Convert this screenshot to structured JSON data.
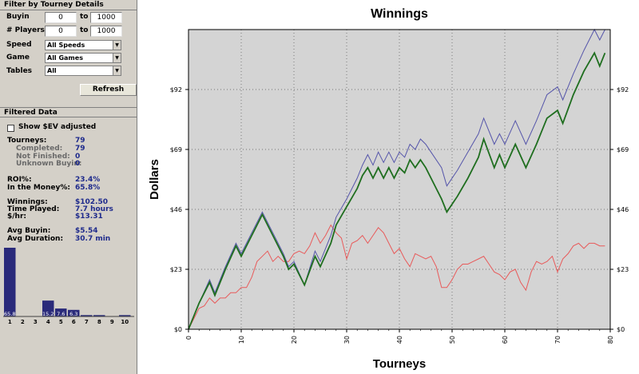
{
  "filter": {
    "header": "Filter by Tourney Details",
    "buyin": {
      "label": "Buyin",
      "min": "0",
      "to": "to",
      "max": "1000"
    },
    "players": {
      "label": "# Players",
      "min": "0",
      "to": "to",
      "max": "1000"
    },
    "speed": {
      "label": "Speed",
      "value": "All Speeds"
    },
    "game": {
      "label": "Game",
      "value": "All Games"
    },
    "tables": {
      "label": "Tables",
      "value": "All"
    },
    "refresh": "Refresh"
  },
  "filtered": {
    "header": "Filtered Data",
    "show_ev": "Show $EV adjusted",
    "tourneys_label": "Tourneys:",
    "tourneys": "79",
    "completed_label": "Completed:",
    "completed": "79",
    "not_finished_label": "Not Finished:",
    "not_finished": "0",
    "unknown_buyin_label": "Unknown Buyin:",
    "unknown_buyin": "0",
    "roi_label": "ROI%:",
    "roi": "23.4%",
    "itm_label": "In the Money%:",
    "itm": "65.8%",
    "winnings_label": "Winnings:",
    "winnings": "$102.50",
    "time_label": "Time Played:",
    "time": "7.7 hours",
    "hourly_label": "$/hr:",
    "hourly": "$13.31",
    "avg_buyin_label": "Avg Buyin:",
    "avg_buyin": "$5.54",
    "avg_duration_label": "Avg Duration:",
    "avg_duration": "30.7 min"
  },
  "histogram": {
    "bar_color": "#2a2a7a",
    "categories": [
      "1",
      "2",
      "3",
      "4",
      "5",
      "6",
      "7",
      "8",
      "9",
      "10"
    ],
    "values": [
      65.8,
      0,
      0,
      15.2,
      7.6,
      6.3,
      1.3,
      1.3,
      0,
      1.3
    ],
    "labels": [
      "65.8",
      "",
      "",
      "15.2",
      "7.6",
      "6.3",
      "",
      "",
      "",
      ""
    ]
  },
  "chart_data": {
    "type": "line",
    "title": "Winnings",
    "xlabel": "Tourneys",
    "ylabel": "Dollars",
    "xlim": [
      0,
      80
    ],
    "ylim": [
      0,
      115
    ],
    "xticks": [
      "0",
      "10",
      "20",
      "30",
      "40",
      "50",
      "60",
      "70",
      "80"
    ],
    "yticks": [
      "$0",
      "$23",
      "$46",
      "$69",
      "$92"
    ],
    "ytick_values": [
      0,
      23,
      46,
      69,
      92
    ],
    "grid": true,
    "background": "#d4d4d4",
    "series": [
      {
        "color": "#5555aa",
        "x": [
          0,
          2,
          4,
          5,
          7,
          9,
          10,
          12,
          14,
          16,
          18,
          19,
          20,
          22,
          24,
          25,
          27,
          28,
          30,
          32,
          33,
          34,
          35,
          36,
          37,
          38,
          39,
          40,
          41,
          42,
          43,
          44,
          45,
          46,
          48,
          49,
          51,
          53,
          55,
          56,
          58,
          59,
          60,
          62,
          64,
          66,
          67,
          68,
          70,
          71,
          73,
          75,
          77,
          78,
          79
        ],
        "y": [
          0,
          10,
          19,
          14,
          24,
          33,
          29,
          37,
          45,
          37,
          29,
          24,
          26,
          17,
          30,
          26,
          36,
          43,
          50,
          58,
          63,
          67,
          63,
          68,
          64,
          68,
          64,
          68,
          66,
          71,
          69,
          73,
          71,
          68,
          62,
          55,
          61,
          68,
          75,
          81,
          71,
          75,
          71,
          80,
          71,
          80,
          85,
          90,
          93,
          88,
          98,
          107,
          115,
          111,
          116
        ]
      },
      {
        "color": "#1f6e1f",
        "x": [
          0,
          2,
          4,
          5,
          7,
          9,
          10,
          12,
          14,
          16,
          18,
          19,
          20,
          22,
          24,
          25,
          27,
          28,
          30,
          32,
          33,
          34,
          35,
          36,
          37,
          38,
          39,
          40,
          41,
          42,
          43,
          44,
          45,
          46,
          48,
          49,
          51,
          53,
          55,
          56,
          58,
          59,
          60,
          62,
          64,
          66,
          67,
          68,
          70,
          71,
          73,
          75,
          77,
          78,
          79
        ],
        "y": [
          0,
          10,
          18,
          13,
          23,
          32,
          28,
          36,
          44,
          36,
          28,
          23,
          25,
          17,
          28,
          24,
          33,
          40,
          47,
          54,
          59,
          62,
          58,
          62,
          58,
          62,
          58,
          62,
          60,
          65,
          62,
          65,
          62,
          58,
          50,
          45,
          51,
          58,
          66,
          73,
          62,
          67,
          62,
          71,
          62,
          71,
          76,
          81,
          84,
          79,
          90,
          99,
          106,
          101,
          106
        ]
      },
      {
        "color": "#e85a5a",
        "x": [
          0,
          2,
          3,
          4,
          5,
          6,
          7,
          8,
          9,
          10,
          11,
          12,
          13,
          14,
          15,
          16,
          17,
          18,
          19,
          20,
          21,
          22,
          23,
          24,
          25,
          26,
          27,
          28,
          29,
          30,
          31,
          32,
          33,
          34,
          35,
          36,
          37,
          38,
          39,
          40,
          41,
          42,
          43,
          44,
          45,
          46,
          47,
          48,
          49,
          50,
          51,
          52,
          53,
          54,
          55,
          56,
          57,
          58,
          59,
          60,
          61,
          62,
          63,
          64,
          65,
          66,
          67,
          68,
          69,
          70,
          71,
          72,
          73,
          74,
          75,
          76,
          77,
          78,
          79
        ],
        "y": [
          0,
          8,
          9,
          12,
          10,
          12,
          12,
          14,
          14,
          16,
          16,
          20,
          26,
          28,
          30,
          26,
          28,
          26,
          26,
          29,
          30,
          29,
          32,
          37,
          33,
          36,
          40,
          37,
          35,
          27,
          33,
          34,
          36,
          33,
          36,
          39,
          37,
          33,
          29,
          31,
          27,
          24,
          29,
          28,
          27,
          28,
          24,
          16,
          16,
          19,
          23,
          25,
          25,
          26,
          27,
          28,
          25,
          22,
          21,
          19,
          22,
          23,
          18,
          15,
          22,
          26,
          25,
          26,
          28,
          22,
          27,
          29,
          32,
          33,
          31,
          33,
          33,
          32,
          32
        ]
      }
    ]
  }
}
